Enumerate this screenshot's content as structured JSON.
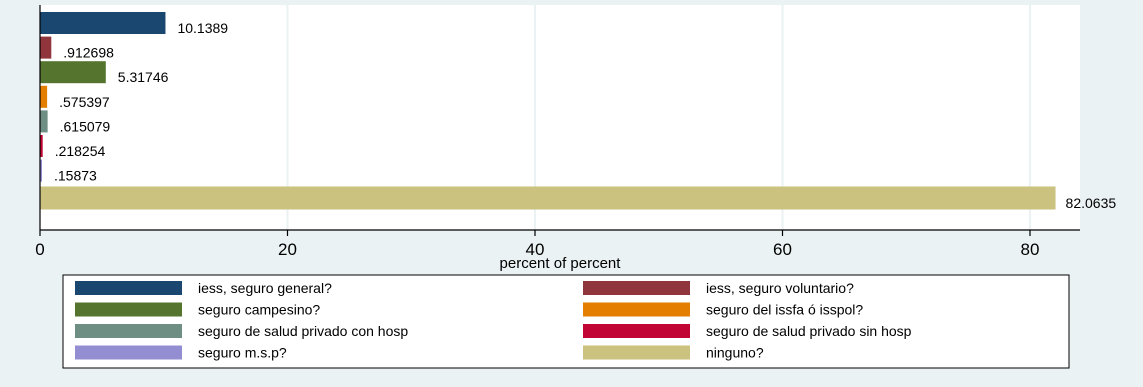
{
  "chart_data": {
    "type": "bar",
    "orientation": "horizontal",
    "xlabel": "percent of percent",
    "xlim": [
      0,
      85
    ],
    "xticks": [
      0,
      20,
      40,
      60,
      80
    ],
    "xtick_labels": [
      "0",
      "20",
      "40",
      "60",
      "80"
    ],
    "grid": true,
    "legend_position": "bottom",
    "series": [
      {
        "name": "iess, seguro general?",
        "value": 10.1389,
        "label": "10.1389",
        "color": "#1a476f"
      },
      {
        "name": "iess, seguro voluntario?",
        "value": 0.912698,
        "label": ".912698",
        "color": "#90353b"
      },
      {
        "name": "seguro campesino?",
        "value": 5.31746,
        "label": "5.31746",
        "color": "#55752f"
      },
      {
        "name": "seguro del issfa ó isspol?",
        "value": 0.575397,
        "label": ".575397",
        "color": "#e37e00"
      },
      {
        "name": "seguro de salud privado con hosp",
        "value": 0.615079,
        "label": ".615079",
        "color": "#6e8e84"
      },
      {
        "name": "seguro de salud privado sin hosp",
        "value": 0.218254,
        "label": ".218254",
        "color": "#c10534"
      },
      {
        "name": "seguro m.s.p?",
        "value": 0.15873,
        "label": ".15873",
        "color": "#938dd2"
      },
      {
        "name": "ninguno?",
        "value": 82.0635,
        "label": "82.0635",
        "color": "#cac27e"
      }
    ]
  }
}
